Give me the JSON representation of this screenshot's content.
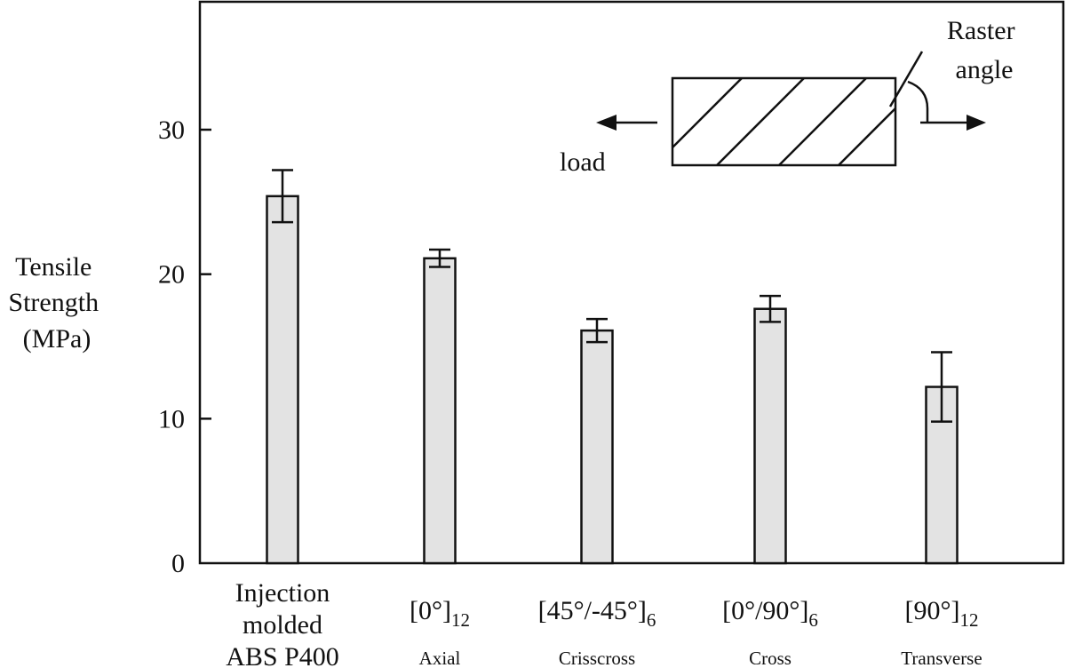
{
  "chart_data": {
    "type": "bar",
    "ylabel_lines": [
      "Tensile",
      "Strength",
      "(MPa)"
    ],
    "ylim": [
      0,
      38
    ],
    "yticks": [
      0,
      10,
      20,
      30
    ],
    "grid": false,
    "categories": [
      {
        "lines": [
          "Injection",
          "molded",
          "ABS P400"
        ],
        "main": "",
        "sub": "",
        "sub_label": ""
      },
      {
        "lines": [],
        "main": "[0°]",
        "sub": "12",
        "sub_label": "Axial"
      },
      {
        "lines": [],
        "main": "[45°/-45°]",
        "sub": "6",
        "sub_label": "Crisscross"
      },
      {
        "lines": [],
        "main": "[0°/90°]",
        "sub": "6",
        "sub_label": "Cross"
      },
      {
        "lines": [],
        "main": "[90°]",
        "sub": "12",
        "sub_label": "Transverse"
      }
    ],
    "values": [
      25.4,
      21.1,
      16.1,
      17.6,
      12.2
    ],
    "errors": [
      1.8,
      0.6,
      0.8,
      0.9,
      2.4
    ],
    "inset": {
      "load_label": "load",
      "raster_label_lines": [
        "Raster",
        "angle"
      ]
    }
  }
}
